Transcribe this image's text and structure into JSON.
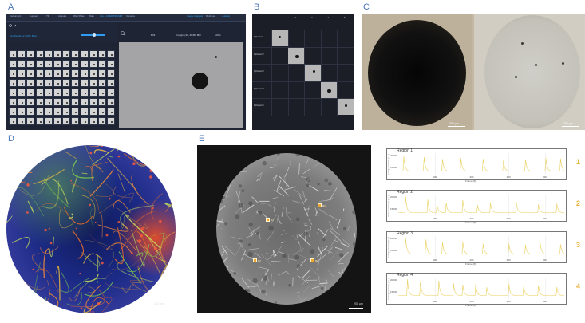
{
  "panel_labels": {
    "a": "A",
    "b": "B",
    "c": "C",
    "d": "D",
    "e": "E"
  },
  "colors": {
    "label": "#4a76b8",
    "trace": "#e8cf5a",
    "region_box": "#f0a62a",
    "region_number": "#e8b23a"
  },
  "panel_a": {
    "top_items": [
      "Instrument",
      "Layout",
      "Tiff",
      "Acquire",
      "Well Plate",
      "Map",
      "ALL LASER PRESET",
      "Camera",
      "Image Analysis",
      "Refocus",
      "Z-stack"
    ],
    "icons": [
      "gear-icon",
      "edit-icon",
      "zoom-icon"
    ],
    "filter_label": "Top Result (or Full) / Best",
    "info": {
      "well": "B03",
      "field": "Imaging 90, Z8456.8FF",
      "zoom": "100%"
    }
  },
  "panel_b": {
    "header_cols": [
      "1",
      "2",
      "3",
      "4",
      "5"
    ],
    "row_labels": [
      "Spheroid 1",
      "Spheroid 2",
      "Spheroid 3",
      "Spheroid 4",
      "Spheroid 5"
    ]
  },
  "panel_c": {
    "scale_left": "200 µm",
    "scale_right": "200 µm"
  },
  "panel_d": {
    "scale": "100 µm"
  },
  "panel_e": {
    "scale": "200 µm",
    "regions": [
      {
        "label": "R3",
        "num": "3"
      },
      {
        "label": "R1",
        "num": "1"
      },
      {
        "label": "R2",
        "num": "2"
      },
      {
        "label": "R4",
        "num": "4"
      }
    ]
  },
  "chart_data": [
    {
      "type": "line",
      "title": "Region 1",
      "ylabel": "Average Intensity (a.u.)",
      "xlabel": "Frame (#)",
      "number": "1",
      "yticks": [
        "20000",
        "15000"
      ],
      "xticks": [
        "100",
        "200",
        "300",
        "400"
      ],
      "xlim": [
        0,
        450
      ],
      "ylim": [
        12000,
        21000
      ],
      "peaks": [
        [
          15,
          19500
        ],
        [
          70,
          19200
        ],
        [
          120,
          18400
        ],
        [
          170,
          18800
        ],
        [
          230,
          18500
        ],
        [
          285,
          17800
        ],
        [
          345,
          18200
        ],
        [
          400,
          19000
        ],
        [
          440,
          18600
        ]
      ]
    },
    {
      "type": "line",
      "title": "Region 2",
      "ylabel": "Average Intensity (a.u.)",
      "xlabel": "Frame (#)",
      "number": "2",
      "yticks": [
        "20000",
        "15000"
      ],
      "xticks": [
        "100",
        "200",
        "300",
        "400"
      ],
      "xlim": [
        0,
        450
      ],
      "ylim": [
        12000,
        21000
      ],
      "peaks": [
        [
          20,
          20000
        ],
        [
          80,
          18800
        ],
        [
          105,
          16800
        ],
        [
          130,
          17500
        ],
        [
          175,
          18600
        ],
        [
          215,
          16500
        ],
        [
          250,
          17400
        ],
        [
          320,
          17700
        ],
        [
          380,
          16800
        ],
        [
          430,
          17100
        ]
      ]
    },
    {
      "type": "line",
      "title": "Region 3",
      "ylabel": "Average Intensity (a.u.)",
      "xlabel": "Frame (#)",
      "number": "3",
      "yticks": [
        "20000",
        "15000"
      ],
      "xticks": [
        "100",
        "200",
        "300",
        "400"
      ],
      "xlim": [
        0,
        450
      ],
      "ylim": [
        12000,
        21000
      ],
      "peaks": [
        [
          20,
          20200
        ],
        [
          75,
          19400
        ],
        [
          120,
          18500
        ],
        [
          175,
          18300
        ],
        [
          230,
          17600
        ],
        [
          300,
          17800
        ],
        [
          345,
          17200
        ],
        [
          385,
          17900
        ],
        [
          440,
          17400
        ]
      ]
    },
    {
      "type": "line",
      "title": "Region 4",
      "ylabel": "Average Intensity (a.u.)",
      "xlabel": "Frame (#)",
      "number": "4",
      "yticks": [
        "20000",
        "15000"
      ],
      "xticks": [
        "100",
        "200",
        "300",
        "400"
      ],
      "xlim": [
        0,
        450
      ],
      "ylim": [
        12000,
        21000
      ],
      "peaks": [
        [
          25,
          20100
        ],
        [
          60,
          19200
        ],
        [
          110,
          19500
        ],
        [
          150,
          18500
        ],
        [
          175,
          17900
        ],
        [
          210,
          18100
        ],
        [
          240,
          16800
        ],
        [
          300,
          18200
        ],
        [
          340,
          17500
        ],
        [
          380,
          17600
        ],
        [
          430,
          16900
        ]
      ]
    }
  ]
}
